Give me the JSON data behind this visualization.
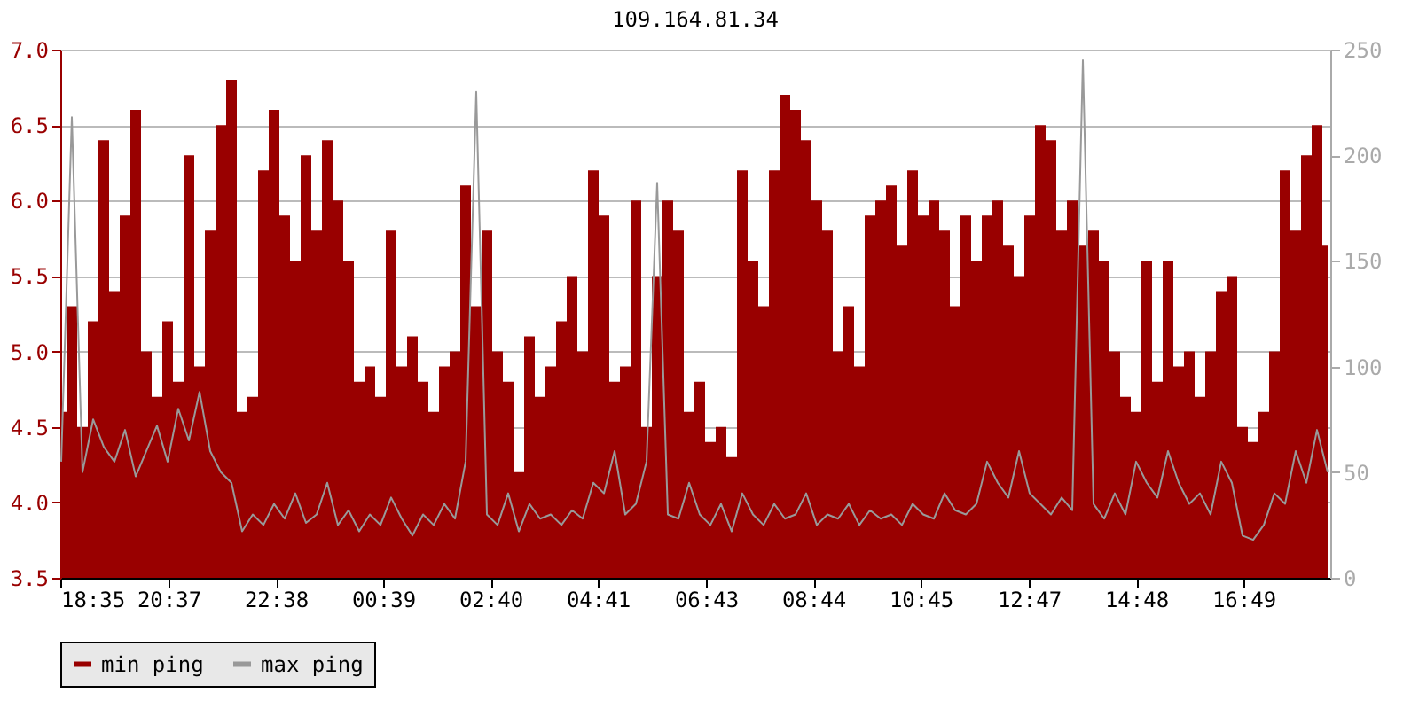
{
  "chart_data": {
    "type": "area",
    "title": "109.164.81.34",
    "x": [
      "--01-01T18:36",
      "--01-01T18:48",
      "--01-01T19:00",
      "--01-01T19:12",
      "--01-01T19:24",
      "--01-01T19:36",
      "--01-01T19:48",
      "--01-01T20:00",
      "--01-01T20:12",
      "--01-01T20:24",
      "--01-01T20:36",
      "--01-01T20:48",
      "--01-01T21:00",
      "--01-01T21:12",
      "--01-01T21:24",
      "--01-01T21:36",
      "--01-01T21:48",
      "--01-01T22:00",
      "--01-01T22:12",
      "--01-01T22:24",
      "--01-01T22:36",
      "--01-01T22:48",
      "--01-01T23:00",
      "--01-01T23:12",
      "--01-01T23:24",
      "--01-01T23:36",
      "--01-01T23:48",
      "--01-02T00:00",
      "--01-02T00:12",
      "--01-02T00:24",
      "--01-02T00:36",
      "--01-02T00:48",
      "--01-02T01:00",
      "--01-02T01:12",
      "--01-02T01:24",
      "--01-02T01:36",
      "--01-02T01:48",
      "--01-02T02:00",
      "--01-02T02:12",
      "--01-02T02:24",
      "--01-02T02:36",
      "--01-02T02:48",
      "--01-02T03:00",
      "--01-02T03:12",
      "--01-02T03:24",
      "--01-02T03:36",
      "--01-02T03:48",
      "--01-02T04:00",
      "--01-02T04:12",
      "--01-02T04:24",
      "--01-02T04:36",
      "--01-02T04:48",
      "--01-02T05:00",
      "--01-02T05:12",
      "--01-02T05:24",
      "--01-02T05:36",
      "--01-02T05:48",
      "--01-02T06:00",
      "--01-02T06:12",
      "--01-02T06:24",
      "--01-02T06:36",
      "--01-02T06:48",
      "--01-02T07:00",
      "--01-02T07:12",
      "--01-02T07:24",
      "--01-02T07:36",
      "--01-02T07:48",
      "--01-02T08:00",
      "--01-02T08:12",
      "--01-02T08:24",
      "--01-02T08:36",
      "--01-02T08:48",
      "--01-02T09:00",
      "--01-02T09:12",
      "--01-02T09:24",
      "--01-02T09:36",
      "--01-02T09:48",
      "--01-02T10:00",
      "--01-02T10:12",
      "--01-02T10:24",
      "--01-02T10:36",
      "--01-02T10:48",
      "--01-02T11:00",
      "--01-02T11:12",
      "--01-02T11:24",
      "--01-02T11:36",
      "--01-02T11:48",
      "--01-02T12:00",
      "--01-02T12:12",
      "--01-02T12:24",
      "--01-02T12:36",
      "--01-02T12:48",
      "--01-02T13:00",
      "--01-02T13:12",
      "--01-02T13:24",
      "--01-02T13:36",
      "--01-02T13:48",
      "--01-02T14:00",
      "--01-02T14:12",
      "--01-02T14:24",
      "--01-02T14:36",
      "--01-02T14:48",
      "--01-02T15:00",
      "--01-02T15:12",
      "--01-02T15:24",
      "--01-02T15:36",
      "--01-02T15:48",
      "--01-02T16:00",
      "--01-02T16:12",
      "--01-02T16:24",
      "--01-02T16:36",
      "--01-02T16:48",
      "--01-02T17:00",
      "--01-02T17:12",
      "--01-02T17:24",
      "--01-02T17:36",
      "--01-02T17:48",
      "--01-02T18:00",
      "--01-02T18:12",
      "--01-02T18:24"
    ],
    "series": [
      {
        "name": "min ping",
        "color": "#990000",
        "values": [
          4.6,
          5.3,
          4.5,
          5.2,
          6.4,
          5.4,
          5.9,
          6.6,
          5.0,
          4.7,
          5.2,
          4.8,
          6.3,
          4.9,
          5.8,
          6.5,
          6.8,
          4.6,
          4.7,
          6.2,
          6.6,
          5.9,
          5.6,
          6.3,
          5.8,
          6.4,
          6.0,
          5.6,
          4.8,
          4.9,
          4.7,
          5.8,
          4.9,
          5.1,
          4.8,
          4.6,
          4.9,
          5.0,
          6.1,
          5.3,
          5.8,
          5.0,
          4.8,
          4.2,
          5.1,
          4.7,
          4.9,
          5.2,
          5.5,
          5.0,
          6.2,
          5.9,
          4.8,
          4.9,
          6.0,
          4.5,
          5.5,
          6.0,
          5.8,
          4.6,
          4.8,
          4.4,
          4.5,
          4.3,
          6.2,
          5.6,
          5.3,
          6.2,
          6.7,
          6.6,
          6.4,
          6.0,
          5.8,
          5.0,
          5.3,
          4.9,
          5.9,
          6.0,
          6.1,
          5.7,
          6.2,
          5.9,
          6.0,
          5.8,
          5.3,
          5.9,
          5.6,
          5.9,
          6.0,
          5.7,
          5.5,
          5.9,
          6.5,
          6.4,
          5.8,
          6.0,
          5.7,
          5.8,
          5.6,
          5.0,
          4.7,
          4.6,
          5.6,
          4.8,
          5.6,
          4.9,
          5.0,
          4.7,
          5.0,
          5.4,
          5.5,
          4.5,
          4.4,
          4.6,
          5.0,
          6.2,
          5.8,
          6.3,
          6.5,
          5.7
        ]
      },
      {
        "name": "max ping",
        "type": "line",
        "axis": "y2",
        "color": "#999999",
        "values": [
          55,
          218,
          50,
          75,
          62,
          55,
          70,
          48,
          60,
          72,
          55,
          80,
          65,
          88,
          60,
          50,
          45,
          22,
          30,
          25,
          35,
          28,
          40,
          26,
          30,
          45,
          25,
          32,
          22,
          30,
          25,
          38,
          28,
          20,
          30,
          25,
          35,
          28,
          55,
          230,
          30,
          25,
          40,
          22,
          35,
          28,
          30,
          25,
          32,
          28,
          45,
          40,
          60,
          30,
          35,
          55,
          187,
          30,
          28,
          45,
          30,
          25,
          35,
          22,
          40,
          30,
          25,
          35,
          28,
          30,
          40,
          25,
          30,
          28,
          35,
          25,
          32,
          28,
          30,
          25,
          35,
          30,
          28,
          40,
          32,
          30,
          35,
          55,
          45,
          38,
          60,
          40,
          35,
          30,
          38,
          32,
          245,
          35,
          28,
          40,
          30,
          55,
          45,
          38,
          60,
          45,
          35,
          40,
          30,
          55,
          45,
          20,
          18,
          25,
          40,
          35,
          60,
          45,
          70,
          50
        ]
      }
    ],
    "xlim": [
      "--01-01T18:35",
      "--01-02T18:27"
    ],
    "xticks": [
      {
        "value": "--01-01T18:35",
        "label": "18:35"
      },
      {
        "value": "--01-01T20:37",
        "label": "20:37"
      },
      {
        "value": "--01-01T22:38",
        "label": "22:38"
      },
      {
        "value": "--01-02T00:39",
        "label": "00:39"
      },
      {
        "value": "--01-02T02:40",
        "label": "02:40"
      },
      {
        "value": "--01-02T04:41",
        "label": "04:41"
      },
      {
        "value": "--01-02T06:43",
        "label": "06:43"
      },
      {
        "value": "--01-02T08:44",
        "label": "08:44"
      },
      {
        "value": "--01-02T10:45",
        "label": "10:45"
      },
      {
        "value": "--01-02T12:47",
        "label": "12:47"
      },
      {
        "value": "--01-02T14:48",
        "label": "14:48"
      },
      {
        "value": "--01-02T16:49",
        "label": "16:49"
      }
    ],
    "ylim": [
      3.5,
      7.0
    ],
    "yticks": [
      3.5,
      {
        "value": 4,
        "label": "4.0"
      },
      4.5,
      {
        "value": 5,
        "label": "5.0"
      },
      5.5,
      {
        "value": 6,
        "label": "6.0"
      },
      6.5,
      {
        "value": 7,
        "label": "7.0"
      }
    ],
    "y2lim": [
      0,
      250
    ],
    "y2ticks": [
      0,
      50,
      100,
      150,
      200,
      250
    ],
    "grid": "y",
    "legend": "bottom"
  }
}
